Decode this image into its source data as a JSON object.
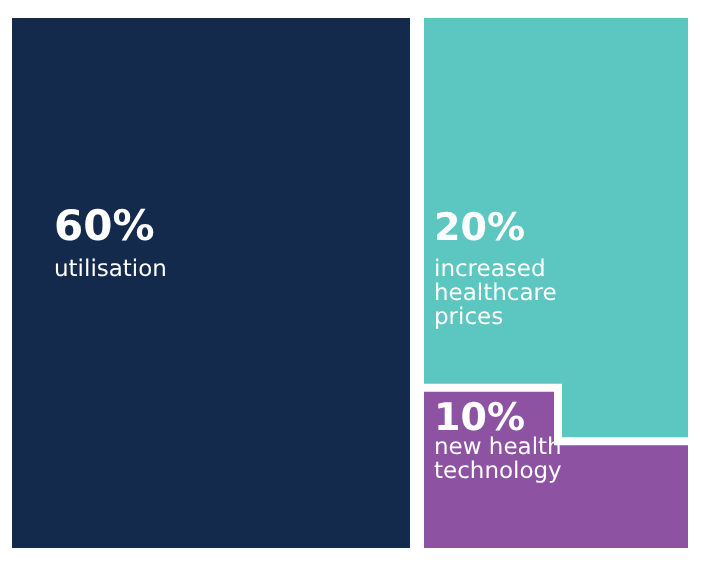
{
  "chart_data": {
    "type": "other",
    "categories": [
      "utilisation",
      "increased healthcare prices",
      "new health technology"
    ],
    "values": [
      60,
      20,
      10
    ],
    "value_labels": [
      "60%",
      "20%",
      "10%"
    ],
    "colors": [
      "#142a4d",
      "#5cc6c1",
      "#8d52a1"
    ]
  }
}
